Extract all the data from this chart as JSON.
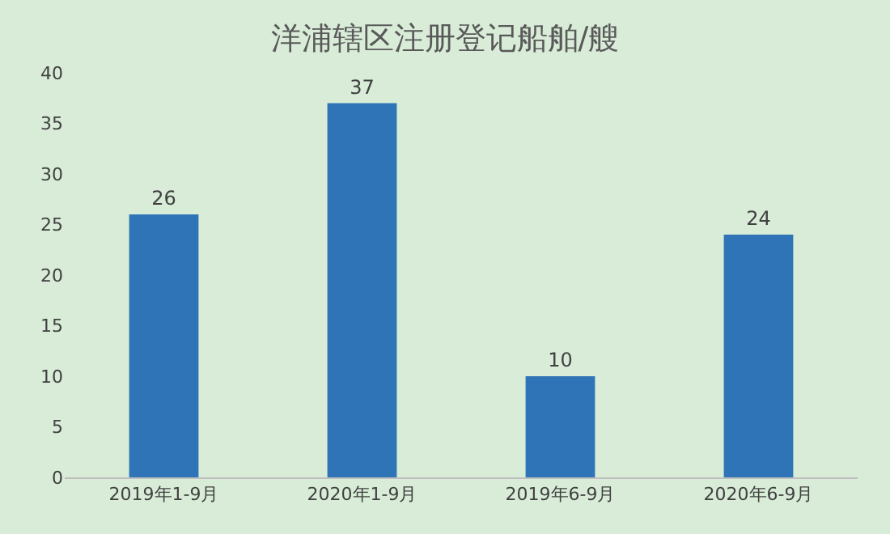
{
  "chart_data": {
    "type": "bar",
    "title": "洋浦辖区注册登记船舶/艘",
    "categories": [
      "2019年1-9月",
      "2020年1-9月",
      "2019年6-9月",
      "2020年6-9月"
    ],
    "values": [
      26,
      37,
      10,
      24
    ],
    "color": "#2e74b6",
    "ylim": [
      0,
      40
    ],
    "yticks": [
      0,
      5,
      10,
      15,
      20,
      25,
      30,
      35,
      40
    ],
    "grid": false,
    "data_labels": true
  }
}
